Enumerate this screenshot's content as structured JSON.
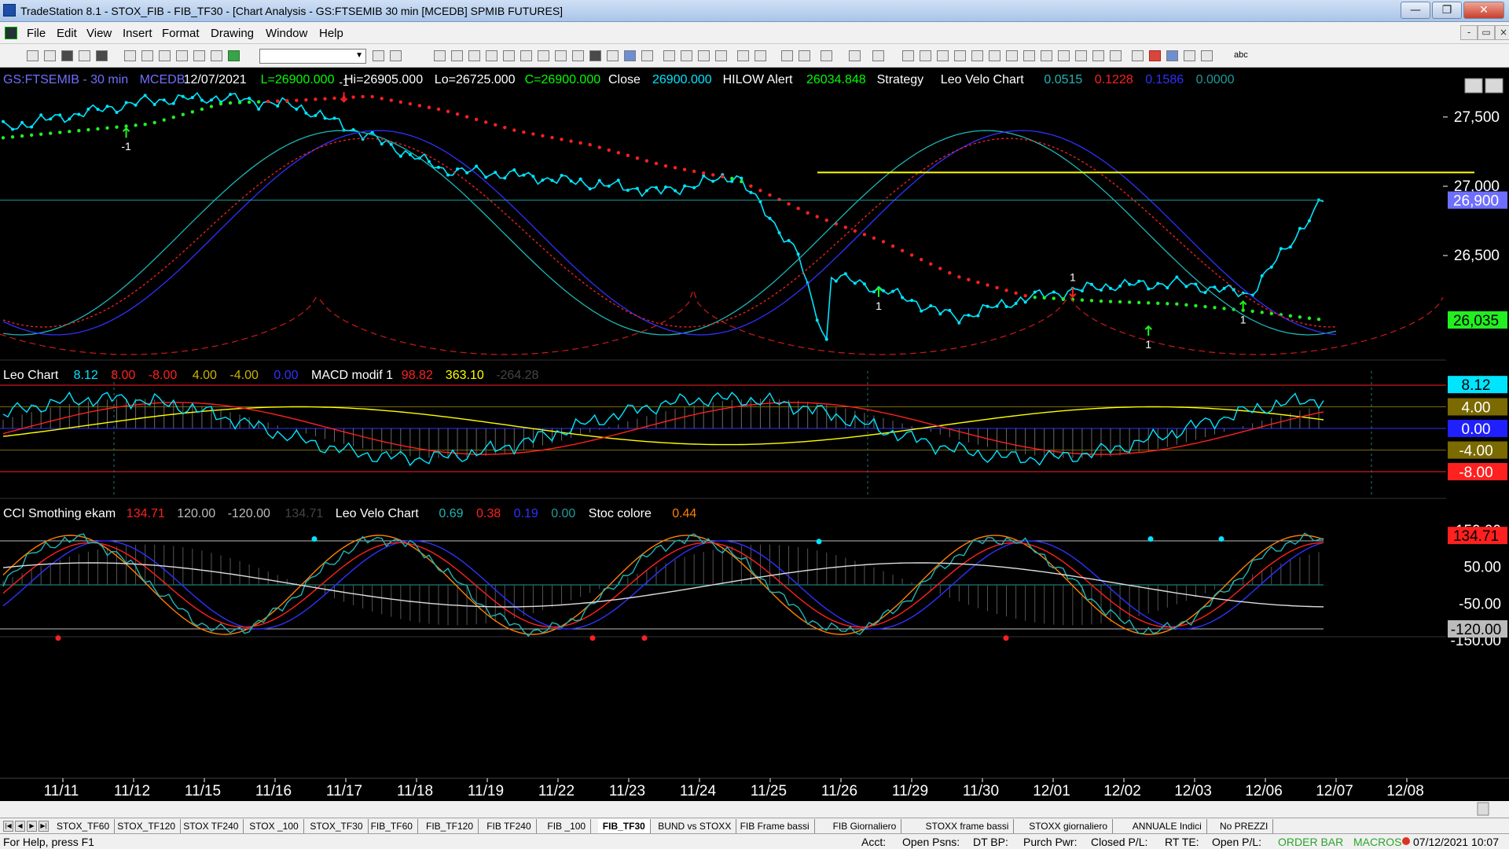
{
  "window": {
    "title": "TradeStation 8.1 - STOX_FIB - FIB_TF30 - [Chart Analysis - GS:FTSEMIB  30 min  [MCEDB] SPMIB FUTURES]",
    "controls": [
      "—",
      "❐",
      "✕"
    ]
  },
  "menu": {
    "items": [
      "File",
      "Edit",
      "View",
      "Insert",
      "Format",
      "Drawing",
      "Window",
      "Help"
    ],
    "mdi_controls": [
      "-",
      "▭",
      "×"
    ]
  },
  "toolbar": {
    "abc_label": "abc"
  },
  "price_pane": {
    "header": [
      {
        "text": "GS:FTSEMIB - 30 min",
        "color": "#6f6fff"
      },
      {
        "text": "MCEDB",
        "color": "#6f6fff"
      },
      {
        "text": "12/07/2021",
        "color": "#ffffff"
      },
      {
        "text": "L=26900.000",
        "color": "#00ff00"
      },
      {
        "text": "Hi=26905.000",
        "color": "#ffffff"
      },
      {
        "text": "Lo=26725.000",
        "color": "#ffffff"
      },
      {
        "text": "C=26900.000",
        "color": "#00ff00"
      },
      {
        "text": "Close",
        "color": "#ffffff"
      },
      {
        "text": "26900.000",
        "color": "#00e5ff"
      },
      {
        "text": "HILOW Alert",
        "color": "#ffffff"
      },
      {
        "text": "26034.848",
        "color": "#00ff00"
      },
      {
        "text": "Strategy",
        "color": "#ffffff"
      },
      {
        "text": "Leo Velo Chart",
        "color": "#ffffff"
      },
      {
        "text": "0.0515",
        "color": "#1fb5b5"
      },
      {
        "text": "0.1228",
        "color": "#ff2020"
      },
      {
        "text": "0.1586",
        "color": "#3030ff"
      },
      {
        "text": "0.0000",
        "color": "#1f9a9a"
      }
    ],
    "axis_labels": [
      "27,500",
      "27,000",
      "26,500"
    ],
    "last_price_tag": "26,900",
    "hilow_tag": "26,035",
    "annotations": [
      "-1",
      "1",
      "1",
      "-1",
      "1",
      "1"
    ]
  },
  "leo_pane": {
    "header": [
      {
        "text": "Leo Chart",
        "color": "#ffffff"
      },
      {
        "text": "8.12",
        "color": "#00e5ff"
      },
      {
        "text": "8.00",
        "color": "#ff2020"
      },
      {
        "text": "-8.00",
        "color": "#ff2020"
      },
      {
        "text": "4.00",
        "color": "#c8b400"
      },
      {
        "text": "-4.00",
        "color": "#c8b400"
      },
      {
        "text": "0.00",
        "color": "#3030ff"
      },
      {
        "text": "MACD modif 1",
        "color": "#ffffff"
      },
      {
        "text": "98.82",
        "color": "#ff2020"
      },
      {
        "text": "363.10",
        "color": "#ffff00"
      },
      {
        "text": "-264.28",
        "color": "#444444"
      }
    ],
    "tags": [
      {
        "text": "8.12",
        "bg": "#00e5ff",
        "fg": "#000000"
      },
      {
        "text": "4.00",
        "bg": "#7a6a00",
        "fg": "#ffffff"
      },
      {
        "text": "0.00",
        "bg": "#2020ff",
        "fg": "#ffffff"
      },
      {
        "text": "-4.00",
        "bg": "#7a6a00",
        "fg": "#ffffff"
      },
      {
        "text": "-8.00",
        "bg": "#ff2020",
        "fg": "#ffffff"
      }
    ]
  },
  "cci_pane": {
    "header": [
      {
        "text": "CCI Smothing ekam",
        "color": "#ffffff"
      },
      {
        "text": "134.71",
        "color": "#ff2020"
      },
      {
        "text": "120.00",
        "color": "#bbbbbb"
      },
      {
        "text": "-120.00",
        "color": "#bbbbbb"
      },
      {
        "text": "134.71",
        "color": "#444444"
      },
      {
        "text": "Leo Velo Chart",
        "color": "#ffffff"
      },
      {
        "text": "0.69",
        "color": "#1fb5b5"
      },
      {
        "text": "0.38",
        "color": "#ff2020"
      },
      {
        "text": "0.19",
        "color": "#3030ff"
      },
      {
        "text": "0.00",
        "color": "#1f9a9a"
      },
      {
        "text": "Stoc colore",
        "color": "#ffffff"
      },
      {
        "text": "0.44",
        "color": "#ff8000"
      }
    ],
    "axis_labels": [
      "150.00",
      "50.00",
      "-50.00",
      "-150.00"
    ],
    "tags": [
      {
        "text": "134.71",
        "bg": "#ff2020",
        "fg": "#000000"
      },
      {
        "text": "-120.00",
        "bg": "#bbbbbb",
        "fg": "#000000"
      }
    ]
  },
  "x_axis": {
    "labels": [
      "11/11",
      "11/12",
      "11/15",
      "11/16",
      "11/17",
      "11/18",
      "11/19",
      "11/22",
      "11/23",
      "11/24",
      "11/25",
      "11/26",
      "11/29",
      "11/30",
      "12/01",
      "12/02",
      "12/03",
      "12/06",
      "12/07",
      "12/08"
    ]
  },
  "tabs": {
    "nav": [
      "|◀",
      "◀",
      "▶",
      "▶|"
    ],
    "items": [
      "STOX_TF60",
      "STOX_TF120",
      "STOX TF240",
      "STOX _100",
      "STOX_TF30",
      "FIB_TF60",
      "FIB_TF120",
      "FIB TF240",
      "FIB _100",
      "FIB_TF30",
      "BUND vs STOXX",
      "FIB Frame bassi",
      "FIB Giornaliero",
      "STOXX frame bassi",
      "STOXX giornaliero",
      "ANNUALE Indici",
      "No PREZZI"
    ],
    "active": 9
  },
  "status": {
    "help": "For Help, press F1",
    "acct": "Acct:",
    "open_psns": "Open Psns:",
    "dt_bp": "DT BP:",
    "purch_pwr": "Purch Pwr:",
    "closed_pl": "Closed P/L:",
    "rt_te": "RT TE:",
    "open_pl": "Open P/L:",
    "order_bar": "ORDER BAR",
    "macros": "MACROS",
    "datetime": "07/12/2021 10:07"
  },
  "chart_data": {
    "type": "line",
    "title": "GS:FTSEMIB - 30 min",
    "x": [
      "11/11",
      "11/12",
      "11/15",
      "11/16",
      "11/17",
      "11/18",
      "11/19",
      "11/22",
      "11/23",
      "11/24",
      "11/25",
      "11/26",
      "11/29",
      "11/30",
      "12/01",
      "12/02",
      "12/03",
      "12/06",
      "12/07"
    ],
    "ylim": [
      25700,
      27800
    ],
    "series": [
      {
        "name": "Close",
        "color": "#00e5ff",
        "values": [
          27420,
          27520,
          27620,
          27640,
          27580,
          27360,
          27120,
          27080,
          27020,
          26960,
          27080,
          26400,
          26250,
          26050,
          26200,
          26280,
          26300,
          26220,
          26900
        ]
      },
      {
        "name": "HILOW Alert",
        "values": [
          27350,
          27400,
          27450,
          27600,
          27620,
          27650,
          27550,
          27400,
          27300,
          27150,
          27050,
          26800,
          26600,
          26350,
          26200,
          26170,
          26150,
          26100,
          26035
        ]
      }
    ],
    "horizontal_level": 27100,
    "last_close": 26900,
    "hilow_value": 26034.848
  }
}
